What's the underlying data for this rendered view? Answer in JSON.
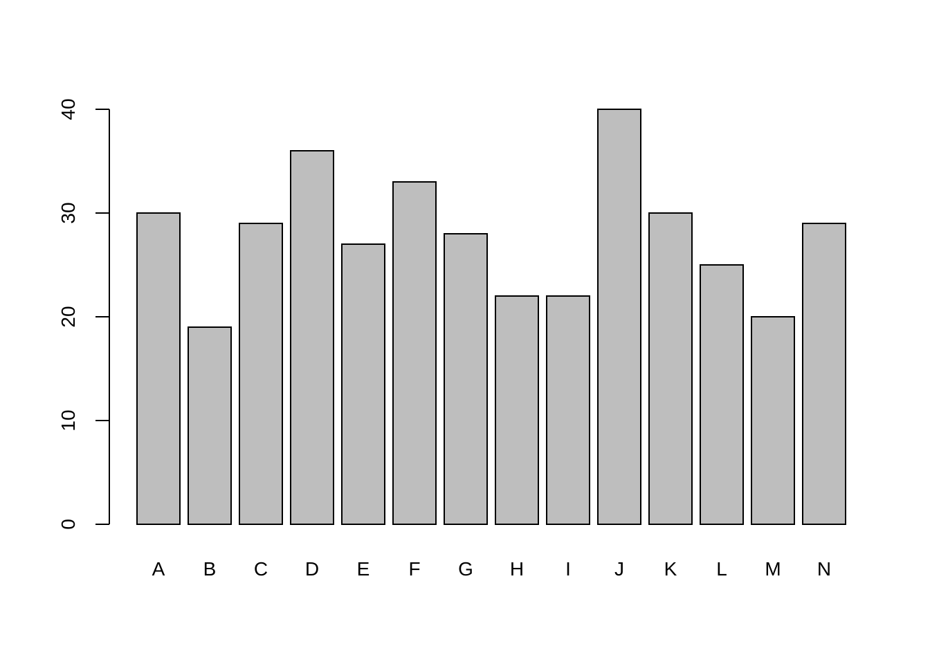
{
  "chart_data": {
    "type": "bar",
    "categories": [
      "A",
      "B",
      "C",
      "D",
      "E",
      "F",
      "G",
      "H",
      "I",
      "J",
      "K",
      "L",
      "M",
      "N"
    ],
    "values": [
      30,
      19,
      29,
      36,
      27,
      33,
      28,
      22,
      22,
      40,
      30,
      25,
      20,
      29
    ],
    "title": "",
    "xlabel": "",
    "ylabel": "",
    "ylim": [
      0,
      40
    ],
    "yticks": [
      "0",
      "10",
      "20",
      "30",
      "40"
    ],
    "bar_color": "#bebebe",
    "grid": false,
    "legend": "none"
  }
}
